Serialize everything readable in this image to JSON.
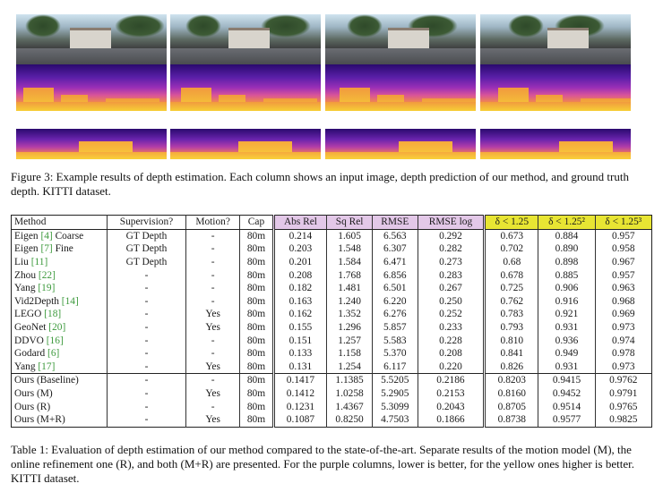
{
  "figure": {
    "columns": 4,
    "caption_label": "Figure 3:",
    "caption_text": "Example results of depth estimation. Each column shows an input image, depth prediction of our method, and ground truth depth. KITTI dataset."
  },
  "table": {
    "headers": [
      "Method",
      "Supervision?",
      "Motion?",
      "Cap",
      "Abs Rel",
      "Sq Rel",
      "RMSE",
      "RMSE log",
      "δ < 1.25",
      "δ < 1.25²",
      "δ < 1.25³"
    ],
    "header_colors": {
      "lower_better": "#e3c8e8",
      "higher_better": "#e8e533"
    },
    "rows": [
      {
        "name": "Eigen",
        "cite": "[4]",
        "suffix": " Coarse",
        "sup": "GT Depth",
        "motion": "-",
        "cap": "80m",
        "vals": [
          "0.214",
          "1.605",
          "6.563",
          "0.292",
          "0.673",
          "0.884",
          "0.957"
        ]
      },
      {
        "name": "Eigen",
        "cite": "[7]",
        "suffix": " Fine",
        "sup": "GT Depth",
        "motion": "-",
        "cap": "80m",
        "vals": [
          "0.203",
          "1.548",
          "6.307",
          "0.282",
          "0.702",
          "0.890",
          "0.958"
        ]
      },
      {
        "name": "Liu",
        "cite": "[11]",
        "suffix": "",
        "sup": "GT Depth",
        "motion": "-",
        "cap": "80m",
        "vals": [
          "0.201",
          "1.584",
          "6.471",
          "0.273",
          "0.68",
          "0.898",
          "0.967"
        ]
      },
      {
        "name": "Zhou",
        "cite": "[22]",
        "suffix": "",
        "sup": "-",
        "motion": "-",
        "cap": "80m",
        "vals": [
          "0.208",
          "1.768",
          "6.856",
          "0.283",
          "0.678",
          "0.885",
          "0.957"
        ]
      },
      {
        "name": "Yang",
        "cite": "[19]",
        "suffix": "",
        "sup": "-",
        "motion": "-",
        "cap": "80m",
        "vals": [
          "0.182",
          "1.481",
          "6.501",
          "0.267",
          "0.725",
          "0.906",
          "0.963"
        ]
      },
      {
        "name": "Vid2Depth",
        "cite": "[14]",
        "suffix": "",
        "sup": "-",
        "motion": "-",
        "cap": "80m",
        "vals": [
          "0.163",
          "1.240",
          "6.220",
          "0.250",
          "0.762",
          "0.916",
          "0.968"
        ]
      },
      {
        "name": "LEGO",
        "cite": "[18]",
        "suffix": "",
        "sup": "-",
        "motion": "Yes",
        "cap": "80m",
        "vals": [
          "0.162",
          "1.352",
          "6.276",
          "0.252",
          "0.783",
          "0.921",
          "0.969"
        ]
      },
      {
        "name": "GeoNet",
        "cite": "[20]",
        "suffix": "",
        "sup": "-",
        "motion": "Yes",
        "cap": "80m",
        "vals": [
          "0.155",
          "1.296",
          "5.857",
          "0.233",
          "0.793",
          "0.931",
          "0.973"
        ]
      },
      {
        "name": "DDVO",
        "cite": "[16]",
        "suffix": "",
        "sup": "-",
        "motion": "-",
        "cap": "80m",
        "vals": [
          "0.151",
          "1.257",
          "5.583",
          "0.228",
          "0.810",
          "0.936",
          "0.974"
        ]
      },
      {
        "name": "Godard",
        "cite": "[6]",
        "suffix": "",
        "sup": "-",
        "motion": "-",
        "cap": "80m",
        "vals": [
          "0.133",
          "1.158",
          "5.370",
          "0.208",
          "0.841",
          "0.949",
          "0.978"
        ]
      },
      {
        "name": "Yang",
        "cite": "[17]",
        "suffix": "",
        "sup": "-",
        "motion": "Yes",
        "cap": "80m",
        "vals": [
          "0.131",
          "1.254",
          "6.117",
          "0.220",
          "0.826",
          "0.931",
          "0.973"
        ]
      },
      {
        "name": "Ours (Baseline)",
        "cite": "",
        "suffix": "",
        "sup": "-",
        "motion": "-",
        "cap": "80m",
        "vals": [
          "0.1417",
          "1.1385",
          "5.5205",
          "0.2186",
          "0.8203",
          "0.9415",
          "0.9762"
        ],
        "sep": true
      },
      {
        "name": "Ours (M)",
        "cite": "",
        "suffix": "",
        "sup": "-",
        "motion": "Yes",
        "cap": "80m",
        "vals": [
          "0.1412",
          "1.0258",
          "5.2905",
          "0.2153",
          "0.8160",
          "0.9452",
          "0.9791"
        ]
      },
      {
        "name": "Ours (R)",
        "cite": "",
        "suffix": "",
        "sup": "-",
        "motion": "-",
        "cap": "80m",
        "vals": [
          "0.1231",
          "1.4367",
          "5.3099",
          "0.2043",
          "0.8705",
          "0.9514",
          "0.9765"
        ]
      },
      {
        "name": "Ours (M+R)",
        "cite": "",
        "suffix": "",
        "sup": "-",
        "motion": "Yes",
        "cap": "80m",
        "vals": [
          "0.1087",
          "0.8250",
          "4.7503",
          "0.1866",
          "0.8738",
          "0.9577",
          "0.9825"
        ],
        "bold": true
      }
    ],
    "caption_label": "Table 1:",
    "caption_text": "Evaluation of depth estimation of our method compared to the state-of-the-art. Separate results of the motion model (M), the online refinement one (R), and both (M+R) are presented. For the purple columns, lower is better, for the yellow ones higher is better. KITTI dataset."
  }
}
